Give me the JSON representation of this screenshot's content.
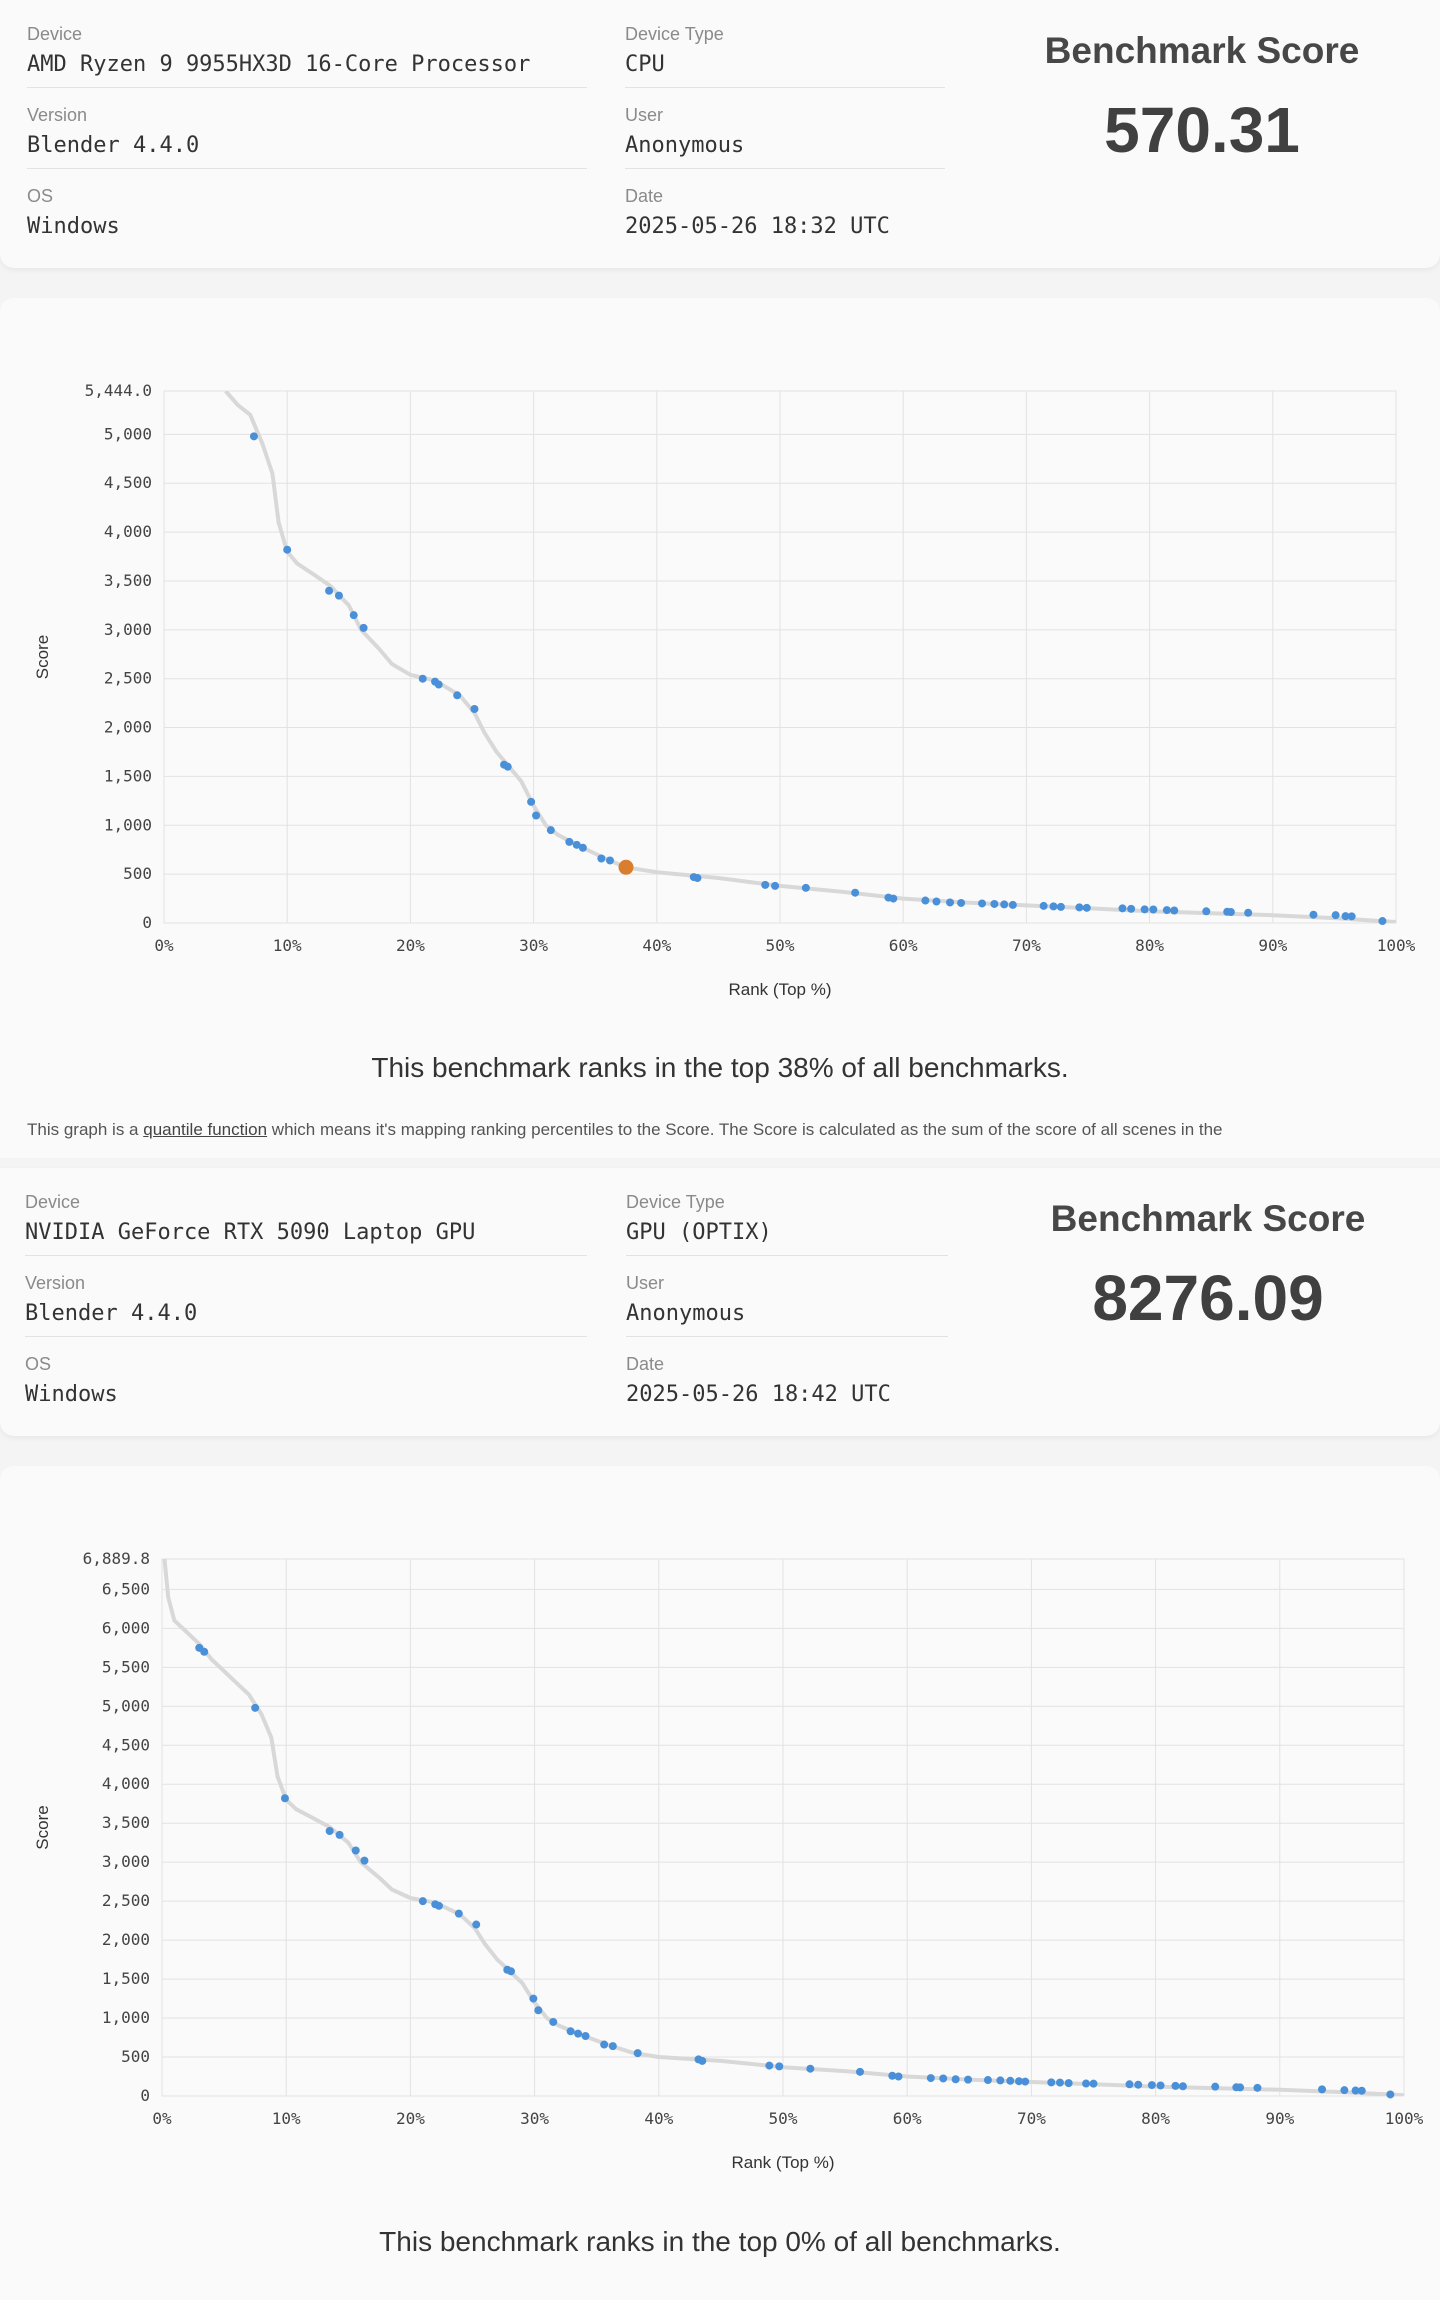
{
  "results": [
    {
      "fields": [
        {
          "label": "Device",
          "value": "AMD Ryzen 9 9955HX3D 16-Core Processor"
        },
        {
          "label": "Device Type",
          "value": "CPU"
        },
        {
          "label": "Version",
          "value": "Blender 4.4.0"
        },
        {
          "label": "User",
          "value": "Anonymous"
        },
        {
          "label": "OS",
          "value": "Windows"
        },
        {
          "label": "Date",
          "value": "2025-05-26 18:32 UTC"
        }
      ],
      "score_title": "Benchmark Score",
      "score_value": "570.31",
      "rank_text": "This benchmark ranks in the top 38% of all benchmarks.",
      "note_prefix": "This graph is a",
      "note_link": "quantile function",
      "note_suffix": "which means it's mapping ranking percentiles to the Score. The Score is calculated as the sum of the score of all scenes in the"
    },
    {
      "fields": [
        {
          "label": "Device",
          "value": "NVIDIA GeForce RTX 5090 Laptop GPU"
        },
        {
          "label": "Device Type",
          "value": "GPU (OPTIX)"
        },
        {
          "label": "Version",
          "value": "Blender 4.4.0"
        },
        {
          "label": "User",
          "value": "Anonymous"
        },
        {
          "label": "OS",
          "value": "Windows"
        },
        {
          "label": "Date",
          "value": "2025-05-26 18:42 UTC"
        }
      ],
      "score_title": "Benchmark Score",
      "score_value": "8276.09",
      "rank_text": "This benchmark ranks in the top 0% of all benchmarks.",
      "note_prefix": "",
      "note_link": "",
      "note_suffix": ""
    }
  ],
  "chart_data": [
    {
      "type": "scatter",
      "xlabel": "Rank (Top %)",
      "ylabel": "Score",
      "xlim": [
        0,
        100
      ],
      "ylim": [
        0,
        5444.0
      ],
      "x_ticks": [
        "0%",
        "10%",
        "20%",
        "30%",
        "40%",
        "50%",
        "60%",
        "70%",
        "80%",
        "90%",
        "100%"
      ],
      "y_ticks": [
        "0",
        "500",
        "1,000",
        "1,500",
        "2,000",
        "2,500",
        "3,000",
        "3,500",
        "4,000",
        "4,500",
        "5,000",
        "5,444.0"
      ],
      "grid": true,
      "curve": [
        [
          5,
          5444
        ],
        [
          6,
          5300
        ],
        [
          7,
          5200
        ],
        [
          8,
          4900
        ],
        [
          8.8,
          4600
        ],
        [
          9.3,
          4100
        ],
        [
          10,
          3800
        ],
        [
          10.8,
          3680
        ],
        [
          12,
          3580
        ],
        [
          13.5,
          3450
        ],
        [
          15,
          3250
        ],
        [
          16,
          3000
        ],
        [
          17.5,
          2800
        ],
        [
          18.5,
          2650
        ],
        [
          20,
          2540
        ],
        [
          22,
          2480
        ],
        [
          24,
          2330
        ],
        [
          25.2,
          2150
        ],
        [
          26,
          1950
        ],
        [
          27,
          1750
        ],
        [
          28,
          1600
        ],
        [
          29,
          1450
        ],
        [
          30,
          1200
        ],
        [
          31,
          1000
        ],
        [
          32,
          900
        ],
        [
          34,
          770
        ],
        [
          36,
          650
        ],
        [
          37.5,
          570
        ],
        [
          40,
          520
        ],
        [
          45,
          460
        ],
        [
          50,
          380
        ],
        [
          55,
          320
        ],
        [
          60,
          250
        ],
        [
          65,
          210
        ],
        [
          70,
          180
        ],
        [
          75,
          150
        ],
        [
          80,
          120
        ],
        [
          85,
          100
        ],
        [
          90,
          80
        ],
        [
          95,
          50
        ],
        [
          100,
          10
        ]
      ],
      "points": [
        [
          7.3,
          4980
        ],
        [
          10,
          3820
        ],
        [
          13.4,
          3400
        ],
        [
          14.2,
          3350
        ],
        [
          15.4,
          3150
        ],
        [
          16.2,
          3020
        ],
        [
          21,
          2500
        ],
        [
          22,
          2470
        ],
        [
          22.3,
          2440
        ],
        [
          23.8,
          2330
        ],
        [
          25.2,
          2190
        ],
        [
          27.6,
          1620
        ],
        [
          27.9,
          1600
        ],
        [
          29.8,
          1240
        ],
        [
          30.2,
          1100
        ],
        [
          31.4,
          950
        ],
        [
          32.9,
          830
        ],
        [
          33.5,
          800
        ],
        [
          34,
          770
        ],
        [
          35.5,
          660
        ],
        [
          36.2,
          640
        ],
        [
          43,
          470
        ],
        [
          43.3,
          460
        ],
        [
          48.8,
          390
        ],
        [
          49.6,
          380
        ],
        [
          52.1,
          360
        ],
        [
          56.1,
          310
        ],
        [
          58.8,
          260
        ],
        [
          59.2,
          250
        ],
        [
          61.8,
          230
        ],
        [
          62.7,
          220
        ],
        [
          63.8,
          210
        ],
        [
          64.7,
          205
        ],
        [
          66.4,
          200
        ],
        [
          67.4,
          195
        ],
        [
          68.2,
          190
        ],
        [
          68.9,
          185
        ],
        [
          71.4,
          175
        ],
        [
          72.2,
          170
        ],
        [
          72.8,
          165
        ],
        [
          74.3,
          160
        ],
        [
          74.9,
          155
        ],
        [
          77.8,
          150
        ],
        [
          78.5,
          145
        ],
        [
          79.6,
          140
        ],
        [
          80.3,
          138
        ],
        [
          81.4,
          132
        ],
        [
          82,
          128
        ],
        [
          84.6,
          120
        ],
        [
          86.3,
          115
        ],
        [
          86.6,
          112
        ],
        [
          88,
          105
        ],
        [
          93.3,
          85
        ],
        [
          95.1,
          80
        ],
        [
          95.9,
          70
        ],
        [
          96.4,
          68
        ],
        [
          98.9,
          20
        ]
      ],
      "highlight": [
        37.5,
        570.31
      ]
    },
    {
      "type": "scatter",
      "xlabel": "Rank (Top %)",
      "ylabel": "Score",
      "xlim": [
        0,
        100
      ],
      "ylim": [
        0,
        6889.8
      ],
      "x_ticks": [
        "0%",
        "10%",
        "20%",
        "30%",
        "40%",
        "50%",
        "60%",
        "70%",
        "80%",
        "90%",
        "100%"
      ],
      "y_ticks": [
        "0",
        "500",
        "1,000",
        "1,500",
        "2,000",
        "2,500",
        "3,000",
        "3,500",
        "4,000",
        "4,500",
        "5,000",
        "5,500",
        "6,000",
        "6,500",
        "6,889.8"
      ],
      "grid": true,
      "curve": [
        [
          0.2,
          6889.8
        ],
        [
          0.5,
          6400
        ],
        [
          1,
          6100
        ],
        [
          2,
          5950
        ],
        [
          3,
          5800
        ],
        [
          4,
          5600
        ],
        [
          5,
          5450
        ],
        [
          6,
          5300
        ],
        [
          7,
          5150
        ],
        [
          8,
          4900
        ],
        [
          8.8,
          4600
        ],
        [
          9.3,
          4100
        ],
        [
          10,
          3800
        ],
        [
          10.8,
          3680
        ],
        [
          12,
          3580
        ],
        [
          13.5,
          3450
        ],
        [
          15,
          3250
        ],
        [
          16,
          3000
        ],
        [
          17.5,
          2800
        ],
        [
          18.5,
          2650
        ],
        [
          20,
          2540
        ],
        [
          22,
          2480
        ],
        [
          24,
          2330
        ],
        [
          25.2,
          2150
        ],
        [
          26,
          1950
        ],
        [
          27,
          1750
        ],
        [
          28,
          1600
        ],
        [
          29,
          1450
        ],
        [
          30,
          1200
        ],
        [
          31,
          1000
        ],
        [
          32,
          900
        ],
        [
          34,
          770
        ],
        [
          36,
          650
        ],
        [
          38,
          550
        ],
        [
          40,
          500
        ],
        [
          45,
          450
        ],
        [
          50,
          370
        ],
        [
          55,
          320
        ],
        [
          60,
          250
        ],
        [
          65,
          210
        ],
        [
          70,
          180
        ],
        [
          75,
          150
        ],
        [
          80,
          120
        ],
        [
          85,
          100
        ],
        [
          90,
          80
        ],
        [
          95,
          50
        ],
        [
          100,
          10
        ]
      ],
      "points": [
        [
          3,
          5750
        ],
        [
          3.4,
          5700
        ],
        [
          7.5,
          4980
        ],
        [
          9.9,
          3820
        ],
        [
          13.5,
          3400
        ],
        [
          14.3,
          3350
        ],
        [
          15.6,
          3150
        ],
        [
          16.3,
          3020
        ],
        [
          21,
          2500
        ],
        [
          22,
          2460
        ],
        [
          22.3,
          2440
        ],
        [
          23.9,
          2340
        ],
        [
          25.3,
          2200
        ],
        [
          27.8,
          1620
        ],
        [
          28.1,
          1600
        ],
        [
          29.9,
          1250
        ],
        [
          30.3,
          1100
        ],
        [
          31.5,
          950
        ],
        [
          32.9,
          830
        ],
        [
          33.5,
          800
        ],
        [
          34.1,
          770
        ],
        [
          35.6,
          660
        ],
        [
          36.3,
          640
        ],
        [
          38.3,
          550
        ],
        [
          43.2,
          470
        ],
        [
          43.5,
          450
        ],
        [
          48.9,
          390
        ],
        [
          49.7,
          380
        ],
        [
          52.2,
          350
        ],
        [
          56.2,
          310
        ],
        [
          58.8,
          260
        ],
        [
          59.3,
          250
        ],
        [
          61.9,
          230
        ],
        [
          62.9,
          225
        ],
        [
          63.9,
          215
        ],
        [
          64.9,
          210
        ],
        [
          66.5,
          205
        ],
        [
          67.5,
          200
        ],
        [
          68.3,
          195
        ],
        [
          69,
          190
        ],
        [
          69.5,
          185
        ],
        [
          71.6,
          175
        ],
        [
          72.3,
          172
        ],
        [
          73,
          165
        ],
        [
          74.4,
          160
        ],
        [
          75,
          158
        ],
        [
          77.9,
          150
        ],
        [
          78.6,
          145
        ],
        [
          79.7,
          140
        ],
        [
          80.4,
          135
        ],
        [
          81.6,
          130
        ],
        [
          82.2,
          125
        ],
        [
          84.8,
          120
        ],
        [
          86.5,
          112
        ],
        [
          86.8,
          110
        ],
        [
          88.2,
          105
        ],
        [
          93.4,
          85
        ],
        [
          95.2,
          75
        ],
        [
          96.1,
          70
        ],
        [
          96.6,
          68
        ],
        [
          98.9,
          20
        ]
      ]
    }
  ],
  "colors": {
    "point": "#4a90d9",
    "highlight": "#d97d2e",
    "curve": "#d8d8d8",
    "grid": "#e2e2e2"
  }
}
